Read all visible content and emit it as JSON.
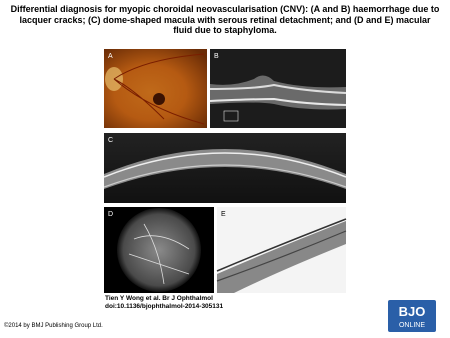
{
  "title": "Differential diagnosis for myopic choroidal neovascularisation (CNV): (A and B) haemorrhage due to lacquer cracks; (C) dome-shaped macula with serous retinal detachment; and (D and E) macular fluid due to staphyloma.",
  "panels": [
    "A",
    "B",
    "C",
    "D",
    "E"
  ],
  "caption": [
    "Tien Y Wong et al. Br J Ophthalmol",
    "doi:10.1136/bjophthalmol-2014-305131"
  ],
  "footer": "©2014 by BMJ Publishing Group Ltd.",
  "logo": [
    "BJO",
    "ONLINE"
  ]
}
